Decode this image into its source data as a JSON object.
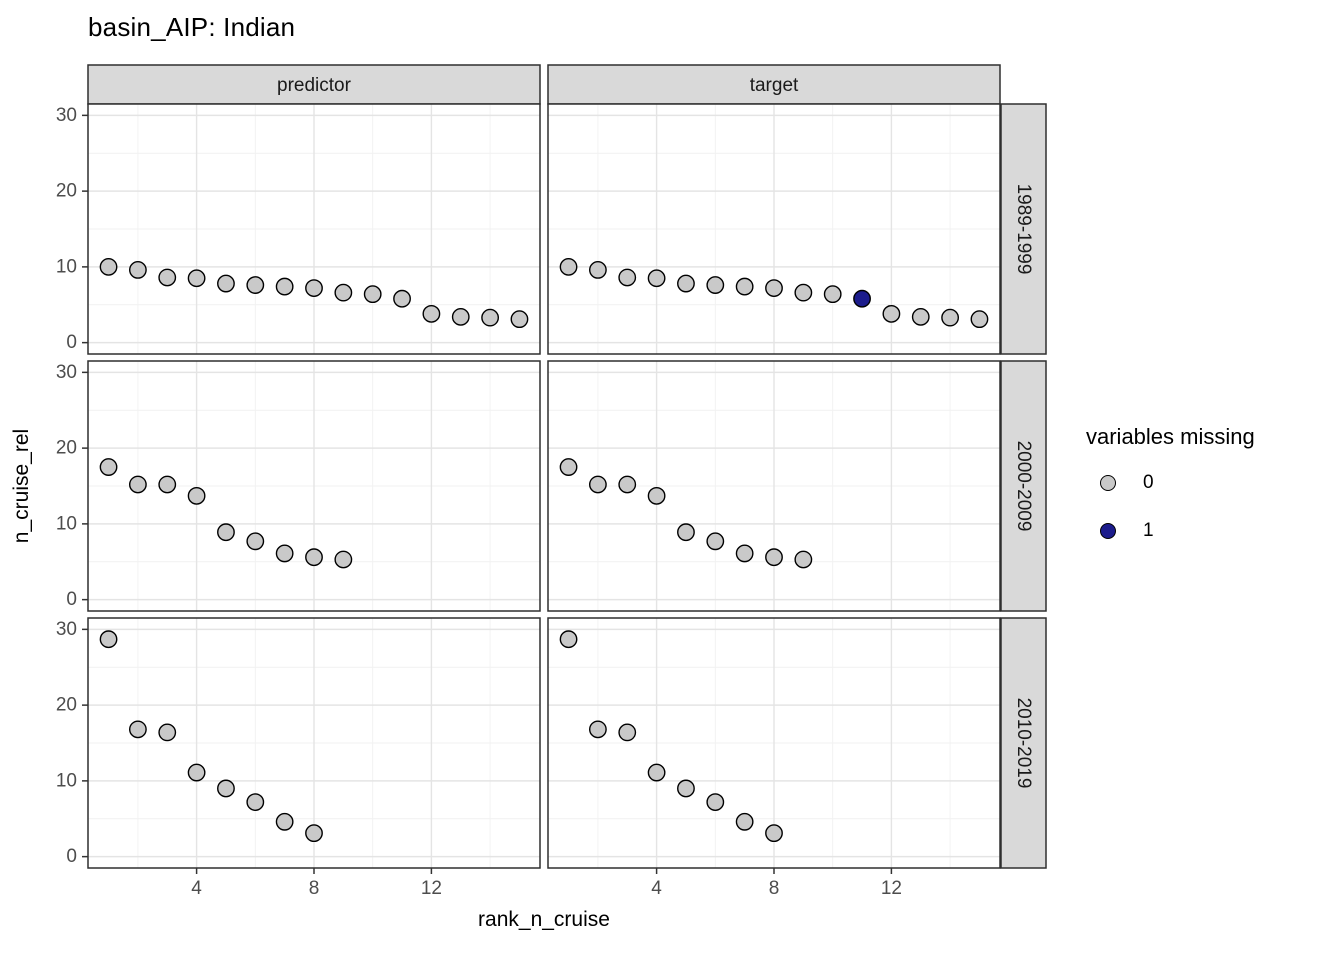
{
  "title": "basin_AIP: Indian",
  "axes": {
    "x_title": "rank_n_cruise",
    "y_title": "n_cruise_rel"
  },
  "legend": {
    "title": "variables missing",
    "items": [
      {
        "label": "0",
        "color": "#c9c9c9"
      },
      {
        "label": "1",
        "color": "#1c1c8c"
      }
    ]
  },
  "colors": {
    "point_fill_missing0": "#c9c9c9",
    "point_fill_missing1": "#1c1c8c",
    "point_stroke": "#000000",
    "strip_fill": "#d9d9d9",
    "strip_text": "#1a1a1a",
    "panel_border": "#2f2f2f",
    "grid_major": "#e4e4e4",
    "grid_minor": "#f1f1f1",
    "tick_mark": "#333333",
    "tick_label": "#4d4d4d",
    "panel_background": "#ffffff"
  },
  "chart_data": {
    "type": "scatter",
    "title": "basin_AIP: Indian",
    "xlabel": "rank_n_cruise",
    "ylabel": "n_cruise_rel",
    "facet_cols": [
      "predictor",
      "target"
    ],
    "facet_rows": [
      "1989-1999",
      "2000-2009",
      "2010-2019"
    ],
    "xlim": [
      0.3,
      15.7
    ],
    "ylim": [
      -1.5,
      31.5
    ],
    "x_ticks": [
      4,
      8,
      12
    ],
    "y_ticks": [
      0,
      10,
      20,
      30
    ],
    "x_minor_gridlines": [
      2,
      6,
      10,
      14
    ],
    "y_minor_gridlines": [
      5,
      15,
      25
    ],
    "grid": true,
    "legend_title": "variables missing",
    "legend_levels": [
      0,
      1
    ],
    "point_format": [
      "rank_n_cruise",
      "n_cruise_rel",
      "variables_missing"
    ],
    "panels": [
      {
        "col": "predictor",
        "row": "1989-1999",
        "points": [
          [
            1,
            10.0,
            0
          ],
          [
            2,
            9.6,
            0
          ],
          [
            3,
            8.6,
            0
          ],
          [
            4,
            8.5,
            0
          ],
          [
            5,
            7.8,
            0
          ],
          [
            6,
            7.6,
            0
          ],
          [
            7,
            7.4,
            0
          ],
          [
            8,
            7.2,
            0
          ],
          [
            9,
            6.6,
            0
          ],
          [
            10,
            6.4,
            0
          ],
          [
            11,
            5.8,
            0
          ],
          [
            12,
            3.8,
            0
          ],
          [
            13,
            3.4,
            0
          ],
          [
            14,
            3.3,
            0
          ],
          [
            15,
            3.1,
            0
          ]
        ]
      },
      {
        "col": "target",
        "row": "1989-1999",
        "points": [
          [
            1,
            10.0,
            0
          ],
          [
            2,
            9.6,
            0
          ],
          [
            3,
            8.6,
            0
          ],
          [
            4,
            8.5,
            0
          ],
          [
            5,
            7.8,
            0
          ],
          [
            6,
            7.6,
            0
          ],
          [
            7,
            7.4,
            0
          ],
          [
            8,
            7.2,
            0
          ],
          [
            9,
            6.6,
            0
          ],
          [
            10,
            6.4,
            0
          ],
          [
            11,
            5.8,
            1
          ],
          [
            12,
            3.8,
            0
          ],
          [
            13,
            3.4,
            0
          ],
          [
            14,
            3.3,
            0
          ],
          [
            15,
            3.1,
            0
          ]
        ]
      },
      {
        "col": "predictor",
        "row": "2000-2009",
        "points": [
          [
            1,
            17.5,
            0
          ],
          [
            2,
            15.2,
            0
          ],
          [
            3,
            15.2,
            0
          ],
          [
            4,
            13.7,
            0
          ],
          [
            5,
            8.9,
            0
          ],
          [
            6,
            7.7,
            0
          ],
          [
            7,
            6.1,
            0
          ],
          [
            8,
            5.6,
            0
          ],
          [
            9,
            5.3,
            0
          ]
        ]
      },
      {
        "col": "target",
        "row": "2000-2009",
        "points": [
          [
            1,
            17.5,
            0
          ],
          [
            2,
            15.2,
            0
          ],
          [
            3,
            15.2,
            0
          ],
          [
            4,
            13.7,
            0
          ],
          [
            5,
            8.9,
            0
          ],
          [
            6,
            7.7,
            0
          ],
          [
            7,
            6.1,
            0
          ],
          [
            8,
            5.6,
            0
          ],
          [
            9,
            5.3,
            0
          ]
        ]
      },
      {
        "col": "predictor",
        "row": "2010-2019",
        "points": [
          [
            1,
            28.7,
            0
          ],
          [
            2,
            16.8,
            0
          ],
          [
            3,
            16.4,
            0
          ],
          [
            4,
            11.1,
            0
          ],
          [
            5,
            9.0,
            0
          ],
          [
            6,
            7.2,
            0
          ],
          [
            7,
            4.6,
            0
          ],
          [
            8,
            3.1,
            0
          ]
        ]
      },
      {
        "col": "target",
        "row": "2010-2019",
        "points": [
          [
            1,
            28.7,
            0
          ],
          [
            2,
            16.8,
            0
          ],
          [
            3,
            16.4,
            0
          ],
          [
            4,
            11.1,
            0
          ],
          [
            5,
            9.0,
            0
          ],
          [
            6,
            7.2,
            0
          ],
          [
            7,
            4.6,
            0
          ],
          [
            8,
            3.1,
            0
          ]
        ]
      }
    ]
  }
}
